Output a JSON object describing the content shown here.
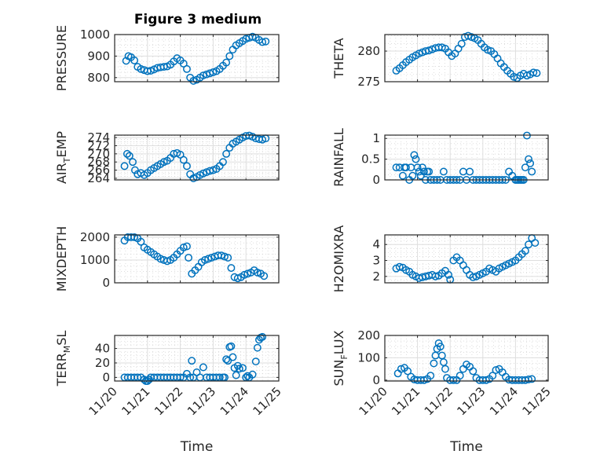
{
  "chart_data": {
    "title": "Figure 3 medium",
    "layout": "4x2 grid of scatter subplots",
    "marker": "open circle",
    "marker_color": "#0072BD",
    "grid": "major and minor",
    "xlabel": "Time",
    "xlim": [
      0,
      5
    ],
    "xticks": [
      0,
      1,
      2,
      3,
      4,
      5
    ],
    "xticklabels": [
      "11/20",
      "11/21",
      "11/22",
      "11/23",
      "11/24",
      "11/25"
    ],
    "x_units": "days since 11/20",
    "subplots": [
      {
        "type": "scatter",
        "ylabel": "PRESSURE",
        "ylabel_sub": "",
        "ylim": [
          781,
          1000
        ],
        "yticks": [
          800,
          900,
          1000
        ],
        "yticklabels": [
          "800",
          "900",
          "1000"
        ],
        "x": [
          0.35,
          0.42,
          0.5,
          0.6,
          0.7,
          0.8,
          0.9,
          1.0,
          1.1,
          1.2,
          1.3,
          1.4,
          1.5,
          1.6,
          1.7,
          1.8,
          1.9,
          2.0,
          2.1,
          2.2,
          2.3,
          2.4,
          2.5,
          2.6,
          2.7,
          2.8,
          2.9,
          3.0,
          3.1,
          3.2,
          3.3,
          3.4,
          3.5,
          3.6,
          3.7,
          3.8,
          3.9,
          4.0,
          4.1,
          4.2,
          4.3,
          4.4,
          4.5,
          4.6
        ],
        "y": [
          878,
          900,
          895,
          880,
          850,
          840,
          835,
          830,
          832,
          838,
          845,
          848,
          850,
          852,
          860,
          875,
          890,
          880,
          865,
          840,
          800,
          785,
          790,
          800,
          810,
          815,
          820,
          825,
          830,
          840,
          855,
          870,
          900,
          930,
          950,
          960,
          970,
          980,
          985,
          990,
          985,
          975,
          965,
          968
        ]
      },
      {
        "type": "scatter",
        "ylabel": "THETA",
        "ylabel_sub": "",
        "ylim": [
          275,
          282.7
        ],
        "yticks": [
          275,
          280
        ],
        "yticklabels": [
          "275",
          "280"
        ],
        "x": [
          0.35,
          0.45,
          0.55,
          0.65,
          0.75,
          0.85,
          0.95,
          1.05,
          1.15,
          1.25,
          1.35,
          1.45,
          1.55,
          1.65,
          1.75,
          1.85,
          1.95,
          2.05,
          2.15,
          2.25,
          2.35,
          2.45,
          2.55,
          2.65,
          2.75,
          2.85,
          2.95,
          3.05,
          3.15,
          3.25,
          3.35,
          3.45,
          3.55,
          3.65,
          3.75,
          3.85,
          3.95,
          4.05,
          4.15,
          4.25,
          4.35,
          4.45,
          4.55,
          4.65
        ],
        "y": [
          276.8,
          277.2,
          277.7,
          278.2,
          278.6,
          279.0,
          279.3,
          279.6,
          279.8,
          280.0,
          280.1,
          280.3,
          280.5,
          280.6,
          280.6,
          280.4,
          279.8,
          279.2,
          279.6,
          280.4,
          281.2,
          282.3,
          282.5,
          282.3,
          282.1,
          281.8,
          281.2,
          280.6,
          280.2,
          280.0,
          279.5,
          278.8,
          278.0,
          277.4,
          276.8,
          276.3,
          275.8,
          275.6,
          276.0,
          276.3,
          276.0,
          276.2,
          276.5,
          276.4
        ]
      },
      {
        "type": "scatter",
        "ylabel": "AIR",
        "ylabel_sub": "T",
        "ylabel_rest": "EMP",
        "ylim": [
          263.6,
          274.6
        ],
        "yticks": [
          264,
          266,
          268,
          270,
          272,
          274
        ],
        "yticklabels": [
          "264",
          "266",
          "268",
          "270",
          "272",
          "274"
        ],
        "x": [
          0.3,
          0.38,
          0.45,
          0.55,
          0.62,
          0.7,
          0.8,
          0.9,
          1.0,
          1.1,
          1.2,
          1.3,
          1.4,
          1.5,
          1.6,
          1.7,
          1.8,
          1.9,
          2.0,
          2.1,
          2.2,
          2.3,
          2.4,
          2.5,
          2.6,
          2.7,
          2.8,
          2.9,
          3.0,
          3.1,
          3.2,
          3.3,
          3.4,
          3.5,
          3.6,
          3.7,
          3.8,
          3.9,
          4.0,
          4.1,
          4.2,
          4.3,
          4.4,
          4.5,
          4.6
        ],
        "y": [
          267,
          270,
          269.5,
          268,
          266,
          265,
          265.3,
          264.8,
          265.3,
          266,
          266.5,
          267,
          267.5,
          268,
          268.3,
          269,
          270,
          270.2,
          269.8,
          268.5,
          267,
          265,
          264,
          264.3,
          264.8,
          265.2,
          265.5,
          265.8,
          266,
          266.3,
          267,
          268,
          270,
          271.5,
          272.5,
          273,
          273.5,
          274,
          274.4,
          274.5,
          274.2,
          273.8,
          273.6,
          273.5,
          273.8
        ]
      },
      {
        "type": "scatter",
        "ylabel": "RAINFALL",
        "ylabel_sub": "",
        "ylim": [
          0,
          1.08
        ],
        "yticks": [
          0,
          0.5,
          1
        ],
        "yticklabels": [
          "0",
          "0.5",
          "1"
        ],
        "x": [
          0.35,
          0.45,
          0.55,
          0.6,
          0.65,
          0.75,
          0.8,
          0.85,
          0.9,
          0.95,
          1.0,
          1.05,
          1.1,
          1.15,
          1.2,
          1.25,
          1.3,
          1.35,
          1.4,
          1.5,
          1.6,
          1.7,
          1.8,
          1.9,
          2.0,
          2.1,
          2.2,
          2.3,
          2.4,
          2.5,
          2.6,
          2.7,
          2.8,
          2.9,
          3.0,
          3.1,
          3.2,
          3.3,
          3.4,
          3.5,
          3.6,
          3.7,
          3.8,
          3.9,
          4.0,
          4.05,
          4.1,
          4.15,
          4.2,
          4.25,
          4.3,
          4.35,
          4.4,
          4.45,
          4.5
        ],
        "y": [
          0.3,
          0.3,
          0.1,
          0.3,
          0.3,
          0.0,
          0.3,
          0.1,
          0.6,
          0.5,
          0.3,
          0.2,
          0.1,
          0.3,
          0.2,
          0.0,
          0.2,
          0.2,
          0.0,
          0.0,
          0.0,
          0.0,
          0.2,
          0.0,
          0.0,
          0.0,
          0.0,
          0.0,
          0.2,
          0.0,
          0.2,
          0.0,
          0.0,
          0.0,
          0.0,
          0.0,
          0.0,
          0.0,
          0.0,
          0.0,
          0.0,
          0.0,
          0.2,
          0.1,
          0.0,
          0.0,
          0.0,
          0.0,
          0.0,
          0.0,
          0.3,
          1.07,
          0.5,
          0.4,
          0.2
        ]
      },
      {
        "type": "scatter",
        "ylabel": "MIXDEPTH",
        "ylabel_sub": "",
        "ylim": [
          0,
          2100
        ],
        "yticks": [
          0,
          1000,
          2000
        ],
        "yticklabels": [
          "0",
          "1000",
          "2000"
        ],
        "x": [
          0.3,
          0.4,
          0.5,
          0.6,
          0.7,
          0.8,
          0.9,
          1.0,
          1.1,
          1.2,
          1.3,
          1.4,
          1.5,
          1.6,
          1.7,
          1.8,
          1.9,
          2.0,
          2.1,
          2.2,
          2.25,
          2.35,
          2.45,
          2.55,
          2.65,
          2.75,
          2.85,
          2.95,
          3.05,
          3.15,
          3.25,
          3.35,
          3.45,
          3.55,
          3.65,
          3.75,
          3.85,
          3.95,
          4.05,
          4.15,
          4.25,
          4.35,
          4.45,
          4.55
        ],
        "y": [
          1850,
          2000,
          2000,
          2000,
          1950,
          1800,
          1550,
          1450,
          1350,
          1250,
          1150,
          1050,
          1000,
          950,
          1000,
          1100,
          1250,
          1400,
          1550,
          1600,
          1100,
          400,
          550,
          700,
          900,
          1000,
          1050,
          1100,
          1150,
          1200,
          1200,
          1150,
          1100,
          650,
          250,
          200,
          250,
          350,
          400,
          450,
          550,
          450,
          400,
          300
        ]
      },
      {
        "type": "scatter",
        "ylabel": "H2OMIXRA",
        "ylabel_sub": "",
        "ylim": [
          1.6,
          4.6
        ],
        "yticks": [
          2,
          3,
          4
        ],
        "yticklabels": [
          "2",
          "3",
          "4"
        ],
        "x": [
          0.35,
          0.45,
          0.55,
          0.65,
          0.75,
          0.85,
          0.95,
          1.05,
          1.15,
          1.25,
          1.35,
          1.45,
          1.55,
          1.65,
          1.75,
          1.85,
          1.95,
          2.0,
          2.1,
          2.2,
          2.3,
          2.4,
          2.5,
          2.6,
          2.7,
          2.8,
          2.9,
          3.0,
          3.1,
          3.2,
          3.3,
          3.4,
          3.5,
          3.6,
          3.7,
          3.8,
          3.9,
          4.0,
          4.1,
          4.2,
          4.3,
          4.4,
          4.5,
          4.6
        ],
        "y": [
          2.5,
          2.6,
          2.55,
          2.4,
          2.3,
          2.1,
          2.0,
          1.9,
          1.95,
          2.0,
          2.05,
          2.1,
          2.0,
          2.05,
          2.2,
          2.35,
          2.1,
          1.8,
          3.0,
          3.2,
          3.0,
          2.7,
          2.4,
          2.1,
          1.95,
          2.0,
          2.1,
          2.2,
          2.3,
          2.5,
          2.4,
          2.3,
          2.5,
          2.6,
          2.7,
          2.8,
          2.9,
          3.0,
          3.2,
          3.4,
          3.6,
          4.0,
          4.4,
          4.1
        ]
      },
      {
        "type": "scatter",
        "ylabel": "TERR",
        "ylabel_sub": "M",
        "ylabel_rest": "SL",
        "ylim": [
          -5,
          58
        ],
        "yticks": [
          0,
          20,
          40
        ],
        "yticklabels": [
          "0",
          "20",
          "40"
        ],
        "x": [
          0.3,
          0.4,
          0.5,
          0.6,
          0.7,
          0.8,
          0.9,
          0.95,
          1.0,
          1.05,
          1.1,
          1.2,
          1.3,
          1.4,
          1.5,
          1.6,
          1.7,
          1.8,
          1.9,
          2.0,
          2.1,
          2.2,
          2.3,
          2.35,
          2.4,
          2.5,
          2.6,
          2.7,
          2.8,
          2.9,
          3.0,
          3.1,
          3.2,
          3.3,
          3.35,
          3.4,
          3.45,
          3.5,
          3.55,
          3.6,
          3.65,
          3.7,
          3.75,
          3.8,
          3.9,
          4.0,
          4.05,
          4.1,
          4.2,
          4.3,
          4.35,
          4.4,
          4.45,
          4.5
        ],
        "y": [
          0,
          0,
          0,
          0,
          0,
          0,
          -3,
          -5,
          -5,
          -3,
          0,
          0,
          0,
          0,
          0,
          0,
          0,
          0,
          0,
          0,
          0,
          5,
          0,
          23,
          0,
          7,
          0,
          14,
          0,
          0,
          0,
          0,
          0,
          0,
          0,
          25,
          23,
          42,
          43,
          28,
          13,
          3,
          16,
          12,
          13,
          0,
          2,
          0,
          4,
          22,
          41,
          52,
          55,
          56
        ]
      },
      {
        "type": "scatter",
        "ylabel": "SUN",
        "ylabel_sub": "F",
        "ylabel_rest": "LUX",
        "ylim": [
          -4,
          200
        ],
        "yticks": [
          0,
          100,
          200
        ],
        "yticklabels": [
          "0",
          "100",
          "200"
        ],
        "x": [
          0.4,
          0.5,
          0.6,
          0.7,
          0.8,
          0.9,
          1.0,
          1.1,
          1.2,
          1.3,
          1.4,
          1.5,
          1.55,
          1.6,
          1.65,
          1.7,
          1.75,
          1.8,
          1.85,
          1.9,
          2.0,
          2.1,
          2.2,
          2.3,
          2.4,
          2.5,
          2.6,
          2.7,
          2.8,
          2.9,
          3.0,
          3.1,
          3.2,
          3.3,
          3.4,
          3.5,
          3.6,
          3.7,
          3.8,
          3.9,
          4.0,
          4.1,
          4.2,
          4.3,
          4.4,
          4.5
        ],
        "y": [
          30,
          50,
          55,
          40,
          15,
          3,
          0,
          0,
          0,
          5,
          20,
          75,
          110,
          140,
          165,
          150,
          110,
          80,
          50,
          10,
          0,
          0,
          0,
          20,
          50,
          70,
          60,
          40,
          10,
          0,
          0,
          0,
          5,
          20,
          45,
          50,
          35,
          15,
          2,
          0,
          0,
          0,
          0,
          0,
          3,
          5
        ]
      }
    ]
  }
}
